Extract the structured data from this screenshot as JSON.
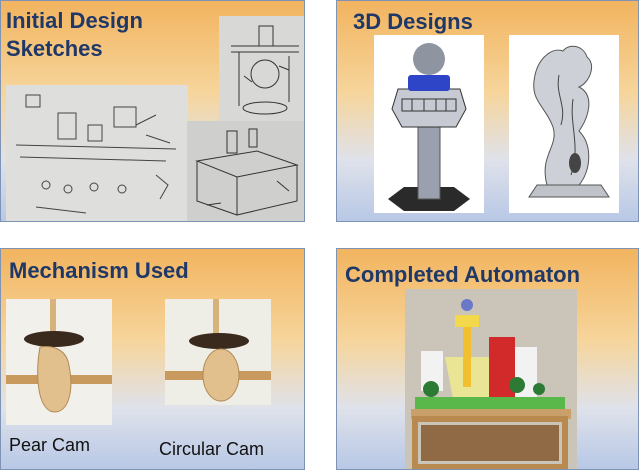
{
  "panels": {
    "sketches": {
      "title_line1": "Initial Design",
      "title_line2": "Sketches"
    },
    "designs": {
      "title": "3D Designs"
    },
    "mechanism": {
      "title": "Mechanism Used",
      "cam_left_label": "Pear Cam",
      "cam_right_label": "Circular Cam"
    },
    "completed": {
      "title": "Completed Automaton"
    }
  },
  "colors": {
    "title_text": "#1f3868",
    "panel_border": "#7f93b4",
    "gradient_top": "#f2b45f",
    "gradient_bottom": "#b8c8e6"
  },
  "icons": [
    "sketch-photo",
    "tower-render",
    "merlion-render",
    "pear-cam-photo",
    "circular-cam-photo",
    "automaton-photo"
  ]
}
